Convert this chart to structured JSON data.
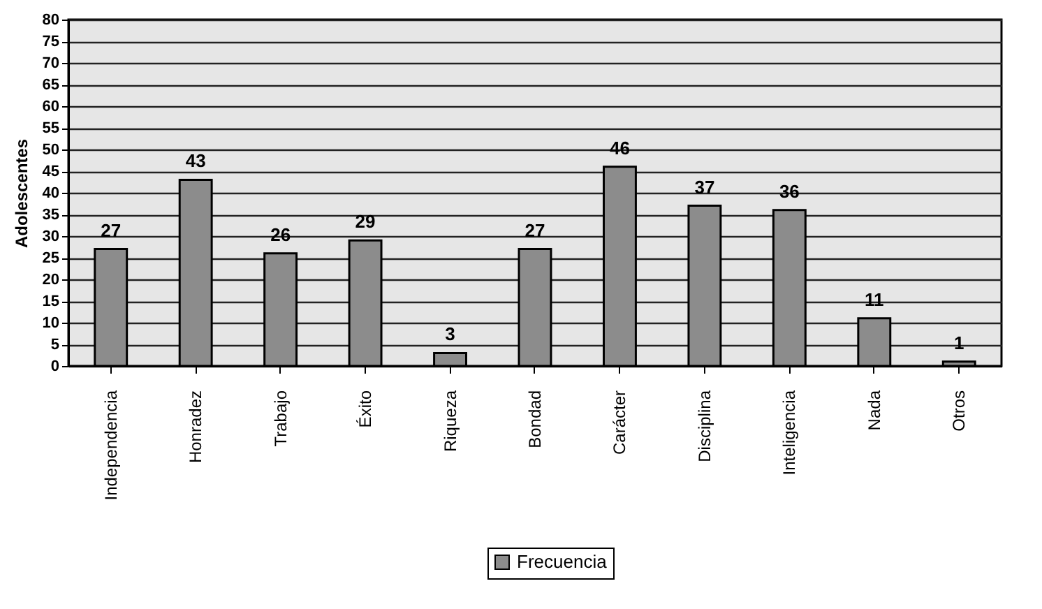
{
  "chart_data": {
    "type": "bar",
    "ylabel": "Adolescentes",
    "categories": [
      "Independencia",
      "Honradez",
      "Trabajo",
      "Éxito",
      "Riqueza",
      "Bondad",
      "Carácter",
      "Disciplina",
      "Inteligencia",
      "Nada",
      "Otros"
    ],
    "series": [
      {
        "name": "Frecuencia",
        "color": "#8c8c8c",
        "values": [
          27,
          43,
          26,
          29,
          3,
          27,
          46,
          37,
          36,
          11,
          1
        ]
      }
    ],
    "ylim": [
      0,
      80
    ],
    "yticks": [
      0,
      5,
      10,
      15,
      20,
      25,
      30,
      35,
      40,
      45,
      50,
      55,
      60,
      65,
      70,
      75,
      80
    ],
    "grid": "y",
    "legend": "bottom",
    "data_labels": true
  }
}
